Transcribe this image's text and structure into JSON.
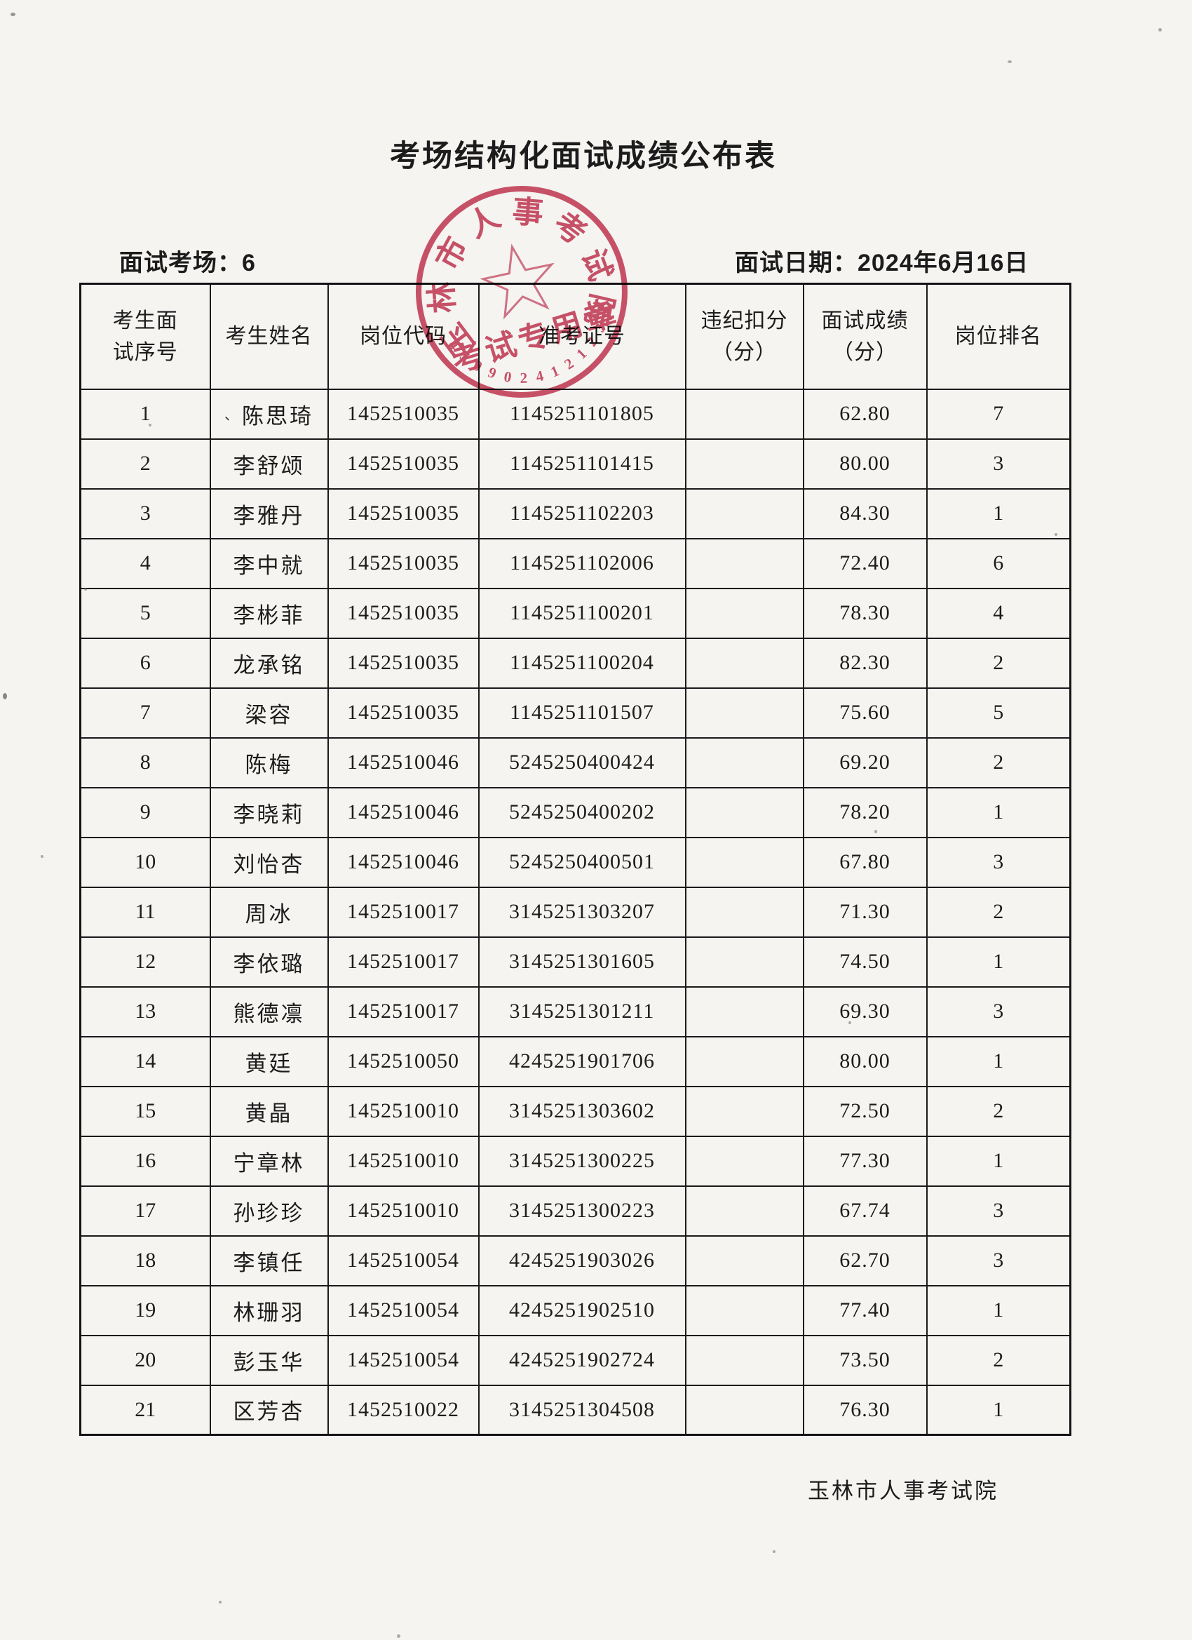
{
  "page": {
    "title": "考场结构化面试成绩公布表",
    "room_label": "面试考场：",
    "room_number": "6",
    "date_label": "面试日期：",
    "date_value": "2024年6月16日",
    "footer_org": "玉林市人事考试院"
  },
  "stamp": {
    "ring_text": "玉林市人事考试院",
    "center_text": "考试专用章",
    "code_digits": "4509024121236",
    "ink_color": "#c73a57"
  },
  "table": {
    "columns": [
      "考生面试序号",
      "考生姓名",
      "岗位代码",
      "准考证号",
      "违纪扣分（分）",
      "面试成绩（分）",
      "岗位排名"
    ],
    "rows": [
      {
        "seq": "1",
        "mark": "、",
        "name": "陈思琦",
        "code": "1452510035",
        "ticket": "1145251101805",
        "deduction": "",
        "score": "62.80",
        "rank": "7"
      },
      {
        "seq": "2",
        "name": "李舒颂",
        "code": "1452510035",
        "ticket": "1145251101415",
        "deduction": "",
        "score": "80.00",
        "rank": "3"
      },
      {
        "seq": "3",
        "name": "李雅丹",
        "code": "1452510035",
        "ticket": "1145251102203",
        "deduction": "",
        "score": "84.30",
        "rank": "1"
      },
      {
        "seq": "4",
        "name": "李中就",
        "code": "1452510035",
        "ticket": "1145251102006",
        "deduction": "",
        "score": "72.40",
        "rank": "6"
      },
      {
        "seq": "5",
        "name": "李彬菲",
        "code": "1452510035",
        "ticket": "1145251100201",
        "deduction": "",
        "score": "78.30",
        "rank": "4"
      },
      {
        "seq": "6",
        "name": "龙承铭",
        "code": "1452510035",
        "ticket": "1145251100204",
        "deduction": "",
        "score": "82.30",
        "rank": "2"
      },
      {
        "seq": "7",
        "name": "梁容",
        "code": "1452510035",
        "ticket": "1145251101507",
        "deduction": "",
        "score": "75.60",
        "rank": "5"
      },
      {
        "seq": "8",
        "name": "陈梅",
        "code": "1452510046",
        "ticket": "5245250400424",
        "deduction": "",
        "score": "69.20",
        "rank": "2"
      },
      {
        "seq": "9",
        "name": "李晓莉",
        "code": "1452510046",
        "ticket": "5245250400202",
        "deduction": "",
        "score": "78.20",
        "rank": "1"
      },
      {
        "seq": "10",
        "name": "刘怡杏",
        "code": "1452510046",
        "ticket": "5245250400501",
        "deduction": "",
        "score": "67.80",
        "rank": "3"
      },
      {
        "seq": "11",
        "name": "周冰",
        "code": "1452510017",
        "ticket": "3145251303207",
        "deduction": "",
        "score": "71.30",
        "rank": "2"
      },
      {
        "seq": "12",
        "name": "李依璐",
        "code": "1452510017",
        "ticket": "3145251301605",
        "deduction": "",
        "score": "74.50",
        "rank": "1"
      },
      {
        "seq": "13",
        "name": "熊德凛",
        "code": "1452510017",
        "ticket": "3145251301211",
        "deduction": "",
        "score": "69.30",
        "rank": "3"
      },
      {
        "seq": "14",
        "name": "黄廷",
        "code": "1452510050",
        "ticket": "4245251901706",
        "deduction": "",
        "score": "80.00",
        "rank": "1"
      },
      {
        "seq": "15",
        "name": "黄晶",
        "code": "1452510010",
        "ticket": "3145251303602",
        "deduction": "",
        "score": "72.50",
        "rank": "2"
      },
      {
        "seq": "16",
        "name": "宁章林",
        "code": "1452510010",
        "ticket": "3145251300225",
        "deduction": "",
        "score": "77.30",
        "rank": "1"
      },
      {
        "seq": "17",
        "name": "孙珍珍",
        "code": "1452510010",
        "ticket": "3145251300223",
        "deduction": "",
        "score": "67.74",
        "rank": "3"
      },
      {
        "seq": "18",
        "name": "李镇任",
        "code": "1452510054",
        "ticket": "4245251903026",
        "deduction": "",
        "score": "62.70",
        "rank": "3"
      },
      {
        "seq": "19",
        "name": "林珊羽",
        "code": "1452510054",
        "ticket": "4245251902510",
        "deduction": "",
        "score": "77.40",
        "rank": "1"
      },
      {
        "seq": "20",
        "name": "彭玉华",
        "code": "1452510054",
        "ticket": "4245251902724",
        "deduction": "",
        "score": "73.50",
        "rank": "2"
      },
      {
        "seq": "21",
        "name": "区芳杏",
        "code": "1452510022",
        "ticket": "3145251304508",
        "deduction": "",
        "score": "76.30",
        "rank": "1"
      }
    ]
  }
}
